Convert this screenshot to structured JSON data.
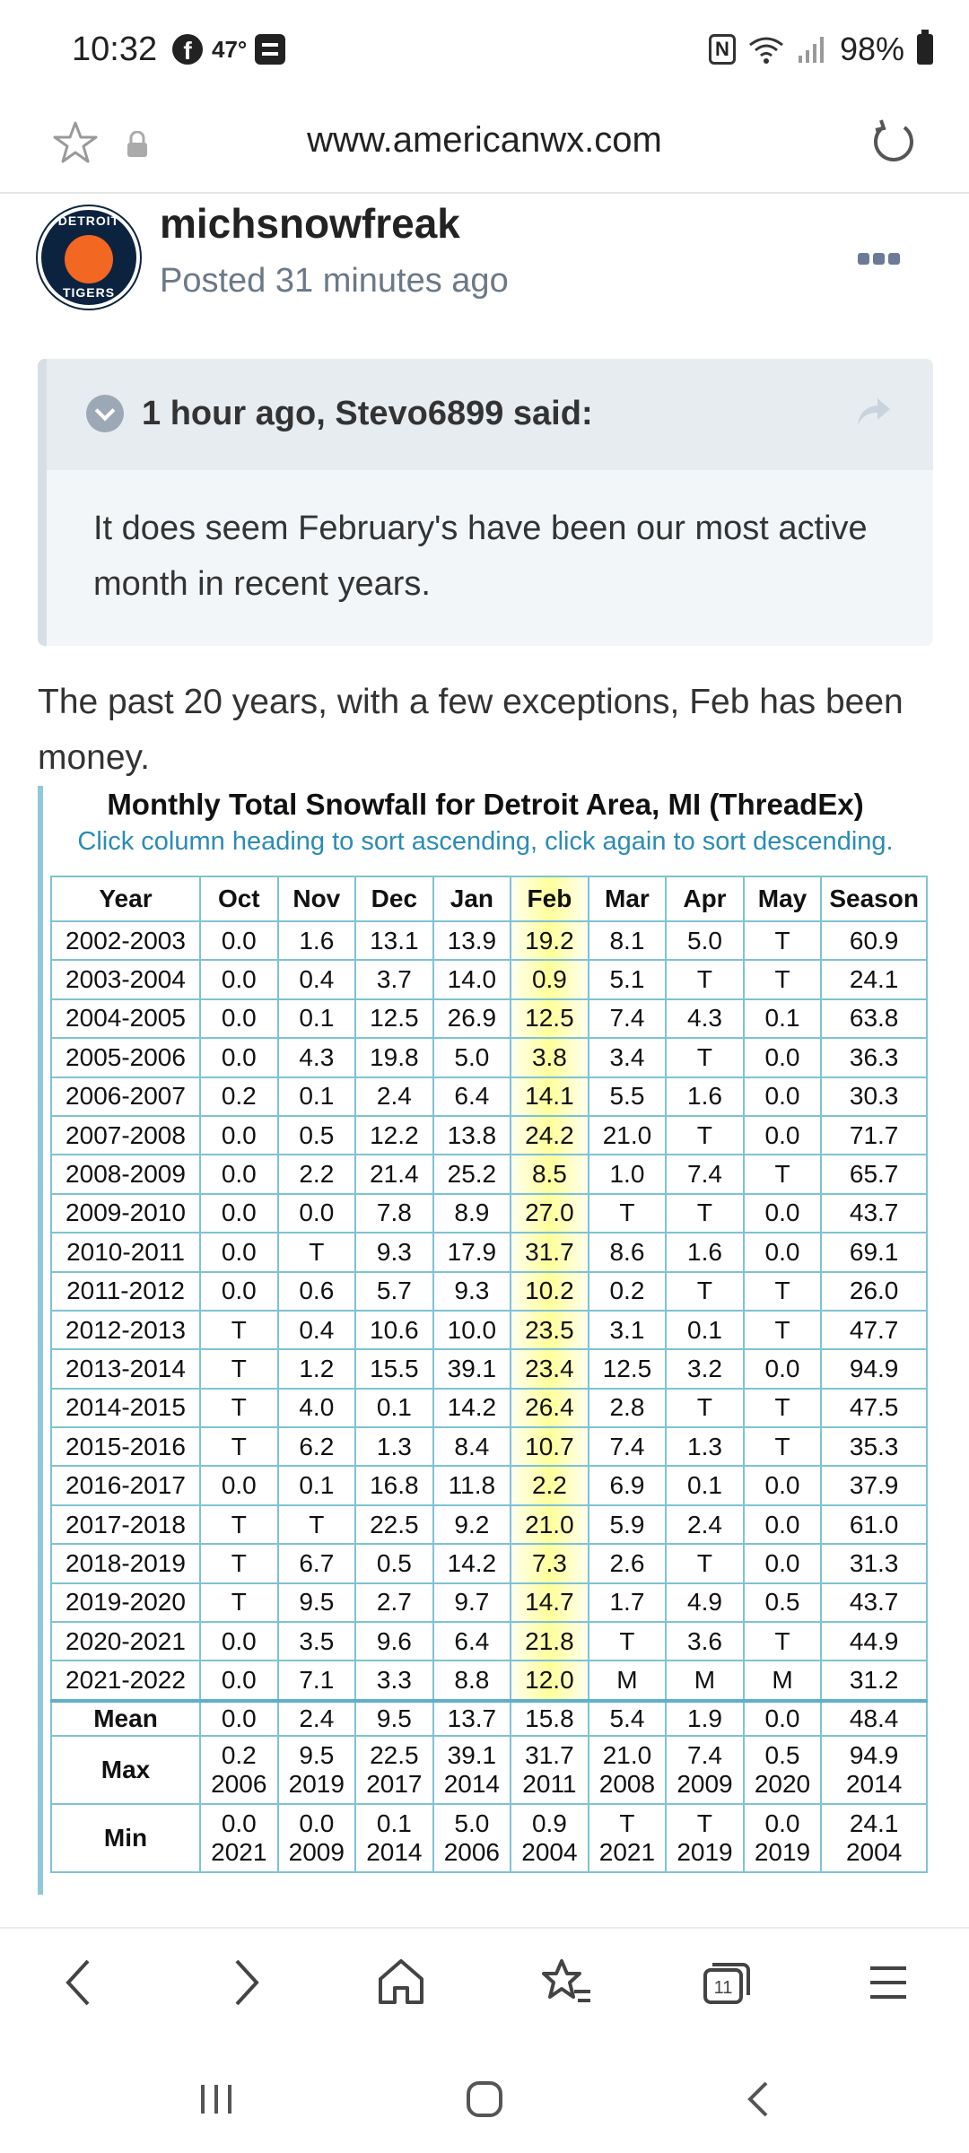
{
  "status_bar": {
    "time": "10:32",
    "temp": "47°",
    "battery": "98%"
  },
  "browser": {
    "url": "www.americanwx.com"
  },
  "post": {
    "username": "michsnowfreak",
    "posted": "Posted 31 minutes ago",
    "avatar_text_top": "DETROIT",
    "avatar_text_bottom": "TIGERS",
    "quote_author": "1 hour ago, Stevo6899 said:",
    "quote_body": " It does seem February's have been our most active month in recent years.",
    "body": "The past 20 years, with a few exceptions, Feb has been money."
  },
  "table": {
    "title": "Monthly Total Snowfall for Detroit Area, MI (ThreadEx)",
    "subtitle": "Click column heading to sort ascending, click again to sort descending.",
    "headers": [
      "Year",
      "Oct",
      "Nov",
      "Dec",
      "Jan",
      "Feb",
      "Mar",
      "Apr",
      "May",
      "Season"
    ],
    "rows": [
      [
        "2002-2003",
        "0.0",
        "1.6",
        "13.1",
        "13.9",
        "19.2",
        "8.1",
        "5.0",
        "T",
        "60.9"
      ],
      [
        "2003-2004",
        "0.0",
        "0.4",
        "3.7",
        "14.0",
        "0.9",
        "5.1",
        "T",
        "T",
        "24.1"
      ],
      [
        "2004-2005",
        "0.0",
        "0.1",
        "12.5",
        "26.9",
        "12.5",
        "7.4",
        "4.3",
        "0.1",
        "63.8"
      ],
      [
        "2005-2006",
        "0.0",
        "4.3",
        "19.8",
        "5.0",
        "3.8",
        "3.4",
        "T",
        "0.0",
        "36.3"
      ],
      [
        "2006-2007",
        "0.2",
        "0.1",
        "2.4",
        "6.4",
        "14.1",
        "5.5",
        "1.6",
        "0.0",
        "30.3"
      ],
      [
        "2007-2008",
        "0.0",
        "0.5",
        "12.2",
        "13.8",
        "24.2",
        "21.0",
        "T",
        "0.0",
        "71.7"
      ],
      [
        "2008-2009",
        "0.0",
        "2.2",
        "21.4",
        "25.2",
        "8.5",
        "1.0",
        "7.4",
        "T",
        "65.7"
      ],
      [
        "2009-2010",
        "0.0",
        "0.0",
        "7.8",
        "8.9",
        "27.0",
        "T",
        "T",
        "0.0",
        "43.7"
      ],
      [
        "2010-2011",
        "0.0",
        "T",
        "9.3",
        "17.9",
        "31.7",
        "8.6",
        "1.6",
        "0.0",
        "69.1"
      ],
      [
        "2011-2012",
        "0.0",
        "0.6",
        "5.7",
        "9.3",
        "10.2",
        "0.2",
        "T",
        "T",
        "26.0"
      ],
      [
        "2012-2013",
        "T",
        "0.4",
        "10.6",
        "10.0",
        "23.5",
        "3.1",
        "0.1",
        "T",
        "47.7"
      ],
      [
        "2013-2014",
        "T",
        "1.2",
        "15.5",
        "39.1",
        "23.4",
        "12.5",
        "3.2",
        "0.0",
        "94.9"
      ],
      [
        "2014-2015",
        "T",
        "4.0",
        "0.1",
        "14.2",
        "26.4",
        "2.8",
        "T",
        "T",
        "47.5"
      ],
      [
        "2015-2016",
        "T",
        "6.2",
        "1.3",
        "8.4",
        "10.7",
        "7.4",
        "1.3",
        "T",
        "35.3"
      ],
      [
        "2016-2017",
        "0.0",
        "0.1",
        "16.8",
        "11.8",
        "2.2",
        "6.9",
        "0.1",
        "0.0",
        "37.9"
      ],
      [
        "2017-2018",
        "T",
        "T",
        "22.5",
        "9.2",
        "21.0",
        "5.9",
        "2.4",
        "0.0",
        "61.0"
      ],
      [
        "2018-2019",
        "T",
        "6.7",
        "0.5",
        "14.2",
        "7.3",
        "2.6",
        "T",
        "0.0",
        "31.3"
      ],
      [
        "2019-2020",
        "T",
        "9.5",
        "2.7",
        "9.7",
        "14.7",
        "1.7",
        "4.9",
        "0.5",
        "43.7"
      ],
      [
        "2020-2021",
        "0.0",
        "3.5",
        "9.6",
        "6.4",
        "21.8",
        "T",
        "3.6",
        "T",
        "44.9"
      ],
      [
        "2021-2022",
        "0.0",
        "7.1",
        "3.3",
        "8.8",
        "12.0",
        "M",
        "M",
        "M",
        "31.2"
      ]
    ],
    "mean": {
      "label": "Mean",
      "values": [
        "0.0",
        "2.4",
        "9.5",
        "13.7",
        "15.8",
        "5.4",
        "1.9",
        "0.0",
        "48.4"
      ]
    },
    "max": {
      "label": "Max",
      "values": [
        "0.2",
        "9.5",
        "22.5",
        "39.1",
        "31.7",
        "21.0",
        "7.4",
        "0.5",
        "94.9"
      ],
      "years": [
        "2006",
        "2019",
        "2017",
        "2014",
        "2011",
        "2008",
        "2009",
        "2020",
        "2014"
      ]
    },
    "min": {
      "label": "Min",
      "values": [
        "0.0",
        "0.0",
        "0.1",
        "5.0",
        "0.9",
        "T",
        "T",
        "0.0",
        "24.1"
      ],
      "years": [
        "2021",
        "2009",
        "2014",
        "2006",
        "2004",
        "2021",
        "2019",
        "2019",
        "2004"
      ]
    }
  },
  "colors": {
    "accent": "#2a8cb5",
    "table_border": "#7fc2d4",
    "highlight": "#ffff78",
    "meta_text": "#6b7887"
  }
}
